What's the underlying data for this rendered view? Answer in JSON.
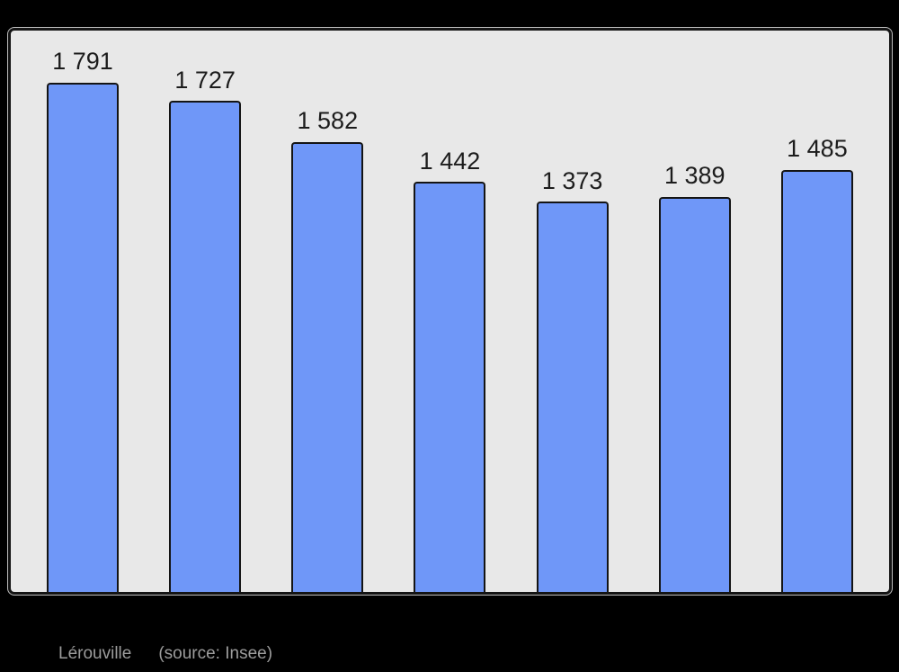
{
  "page": {
    "background": "#000000"
  },
  "chart_data": {
    "type": "bar",
    "title": "",
    "xlabel": "",
    "ylabel": "",
    "values": [
      1791,
      1727,
      1582,
      1442,
      1373,
      1389,
      1485
    ],
    "labels": [
      "1 791",
      "1 727",
      "1 582",
      "1 442",
      "1 373",
      "1 389",
      "1 485"
    ],
    "ylim": [
      0,
      1975
    ],
    "grid": false,
    "legend": "none",
    "axis_tick_labels_visible": false,
    "data_labels_visible": true,
    "bar_color": "#6f97f8",
    "bar_border_color": "#141414",
    "plot_background": "#e8e8e8",
    "plot_border_color": "#141414",
    "data_label_color": "#1c1c1c"
  },
  "caption": {
    "name": "Lérouville",
    "source": "(source: Insee)",
    "color": "#9c9c9c"
  }
}
